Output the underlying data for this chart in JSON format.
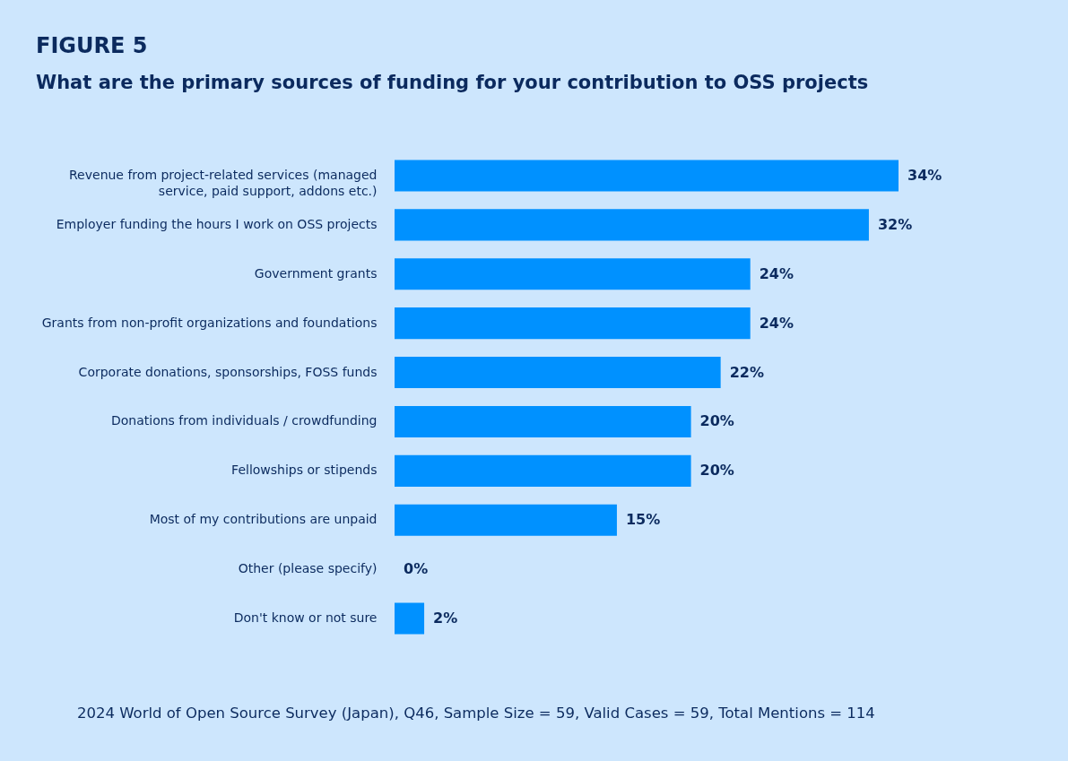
{
  "chart_data": {
    "type": "bar",
    "orientation": "horizontal",
    "title": "FIGURE 5",
    "subtitle": "What are the primary sources of funding for your contribution to OSS projects",
    "categories": [
      "Revenue from project-related services (managed service, paid support, addons etc.)",
      "Employer funding the hours I work on OSS projects",
      "Government grants",
      "Grants from non-profit organizations and foundations",
      "Corporate donations, sponsorships, FOSS funds",
      "Donations from individuals / crowdfunding",
      "Fellowships or stipends",
      "Most of my contributions are unpaid",
      "Other (please specify)",
      "Don't know or not sure"
    ],
    "values": [
      34,
      32,
      24,
      24,
      22,
      20,
      20,
      15,
      0,
      2
    ],
    "value_labels": [
      "34%",
      "32%",
      "24%",
      "24%",
      "22%",
      "20%",
      "20%",
      "15%",
      "0%",
      "2%"
    ],
    "color": "#0091ff",
    "grid": false,
    "annotations": [
      "2024 World of Open Source Survey (Japan), Q46, Sample Size = 59, Valid Cases = 59, Total Mentions = 114"
    ]
  }
}
